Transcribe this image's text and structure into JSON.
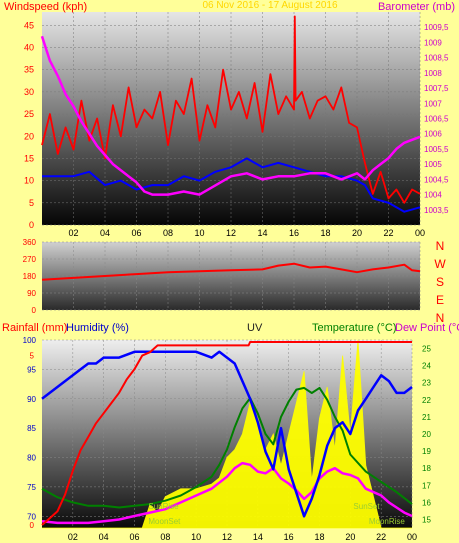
{
  "colors": {
    "background": "#ffff99",
    "wind_speed": "#ff0000",
    "wind_avg": "#0000ff",
    "barometer": "#ff00ff",
    "direction": "#ff0000",
    "rainfall": "#ff0000",
    "humidity": "#0000ff",
    "uv": "#ffff00",
    "temperature": "#008000",
    "dew_point": "#ff00ff",
    "label_red": "#ff0000",
    "label_magenta": "#cc00cc",
    "label_green": "#008000",
    "label_blue": "#0000cc"
  },
  "chart_data": [
    {
      "type": "line",
      "title": "06 Nov 2016 - 17 August 2016",
      "ylabel_left": "Windspeed (kph)",
      "ylabel_right": "Barometer (mb)",
      "ylim_left": [
        0,
        48
      ],
      "ylim_right": [
        1003,
        1010
      ],
      "yticks_left": [
        "0",
        "5",
        "10",
        "15",
        "20",
        "25",
        "30",
        "35",
        "40",
        "45"
      ],
      "yticks_right": [
        "1003,5",
        "1004",
        "1004,5",
        "1005",
        "1005,5",
        "1006",
        "1006,5",
        "1007",
        "1007,5",
        "1008",
        "1008,5",
        "1009",
        "1009,5"
      ],
      "xticks": [
        "02",
        "04",
        "06",
        "08",
        "10",
        "12",
        "14",
        "16",
        "18",
        "20",
        "22",
        "00"
      ],
      "xlim": [
        0,
        24
      ],
      "series": [
        {
          "x": [
            0,
            0.5,
            1,
            1.5,
            2,
            2.5,
            3,
            3.5,
            4,
            4.5,
            5,
            5.5,
            6,
            6.5,
            7,
            7.5,
            8,
            8.5,
            9,
            9.5,
            10,
            10.5,
            11,
            11.5,
            12,
            12.5,
            13,
            13.5,
            14,
            14.5,
            15,
            15.5,
            16,
            16.05,
            16.1,
            16.5,
            17,
            17.5,
            18,
            18.5,
            19,
            19.5,
            20,
            20.5,
            21,
            21.5,
            22,
            22.5,
            23,
            23.5,
            24
          ],
          "values": [
            18,
            25,
            16,
            22,
            17,
            28,
            19,
            24,
            15,
            27,
            20,
            31,
            22,
            26,
            24,
            30,
            18,
            28,
            25,
            33,
            19,
            27,
            22,
            35,
            26,
            30,
            24,
            32,
            21,
            34,
            25,
            29,
            26,
            47,
            28,
            30,
            24,
            28,
            29,
            26,
            31,
            23,
            22,
            14,
            7,
            12,
            6,
            8,
            5,
            8,
            7
          ]
        },
        {
          "x": [
            0,
            1,
            2,
            3,
            4,
            5,
            6,
            7,
            8,
            9,
            10,
            11,
            12,
            13,
            14,
            15,
            16,
            17,
            18,
            19,
            20,
            20.5,
            21,
            22,
            23,
            24
          ],
          "values": [
            11,
            11,
            11,
            12,
            9,
            10,
            8,
            9,
            9,
            11,
            10,
            12,
            13,
            15,
            13,
            14,
            13,
            12,
            11,
            11,
            10,
            9,
            6,
            5,
            3,
            4
          ]
        },
        {
          "x": [
            0,
            0.5,
            1,
            1.5,
            2,
            2.5,
            3,
            3.5,
            4,
            4.5,
            5,
            5.5,
            6,
            6.5,
            7,
            8,
            9,
            10,
            11,
            12,
            13,
            14,
            15,
            16,
            17,
            18,
            19,
            20,
            20.5,
            21,
            21.5,
            22,
            22.5,
            23,
            23.5,
            24
          ],
          "values": [
            1009.2,
            1008.4,
            1007.9,
            1007.3,
            1006.9,
            1006.4,
            1006.0,
            1005.6,
            1005.3,
            1005.0,
            1004.8,
            1004.6,
            1004.4,
            1004.1,
            1004.0,
            1004.0,
            1004.1,
            1004.0,
            1004.3,
            1004.6,
            1004.7,
            1004.5,
            1004.6,
            1004.6,
            1004.7,
            1004.7,
            1004.5,
            1004.7,
            1004.5,
            1004.8,
            1005.0,
            1005.2,
            1005.5,
            1005.7,
            1005.8,
            1005.9
          ]
        }
      ]
    },
    {
      "type": "line",
      "ylim": [
        0,
        360
      ],
      "yticks": [
        "0",
        "90",
        "180",
        "270",
        "360"
      ],
      "compass_labels": [
        "N",
        "W",
        "S",
        "E",
        "N"
      ],
      "xlim": [
        0,
        24
      ],
      "series": [
        {
          "x": [
            0,
            2,
            4,
            6,
            8,
            10,
            12,
            14,
            15,
            16,
            17,
            18,
            19,
            20,
            21,
            22,
            23,
            23.5,
            24
          ],
          "values": [
            160,
            170,
            180,
            190,
            200,
            205,
            210,
            215,
            235,
            245,
            225,
            230,
            215,
            200,
            215,
            225,
            240,
            210,
            205
          ]
        }
      ]
    },
    {
      "type": "line",
      "ylabel_rain": "Rainfall (mm)",
      "ylabel_humidity": "Humidity (%)",
      "label_uv": "UV",
      "ylabel_temperature": "Temperature (°C)",
      "ylabel_dewpoint": "Dew Point (°C",
      "yticks_rain": [
        "0",
        "5"
      ],
      "yticks_humidity": [
        "70",
        "75",
        "80",
        "85",
        "90",
        "95",
        "100"
      ],
      "yticks_temperature": [
        "15",
        "16",
        "17",
        "18",
        "19",
        "20",
        "21",
        "22",
        "23",
        "24",
        "25"
      ],
      "ylim_rain": [
        0,
        5.4
      ],
      "ylim_humidity": [
        68,
        100
      ],
      "ylim_temperature": [
        14.5,
        25.5
      ],
      "xticks": [
        "02",
        "04",
        "06",
        "08",
        "10",
        "12",
        "14",
        "16",
        "18",
        "20",
        "22",
        "00"
      ],
      "xlim": [
        0,
        24
      ],
      "annotations": [
        "SunRise",
        "SunSet",
        "MoonSet",
        "MoonRise"
      ],
      "series": [
        {
          "x": [
            0,
            0.5,
            1,
            1.5,
            2,
            2.5,
            3,
            3.5,
            4,
            4.5,
            5,
            5.5,
            6,
            6.5,
            7,
            7.5,
            8,
            13.4,
            13.5,
            24
          ],
          "values": [
            0,
            0.2,
            0.4,
            0.9,
            1.6,
            2.2,
            2.6,
            3.0,
            3.3,
            3.6,
            3.9,
            4.3,
            4.6,
            5.0,
            5.1,
            5.3,
            5.3,
            5.3,
            5.4,
            5.4
          ]
        },
        {
          "x": [
            0,
            0.5,
            1,
            1.5,
            2,
            2.5,
            3,
            3.5,
            4,
            5,
            6,
            8,
            10,
            11,
            11.5,
            12,
            12.5,
            13,
            13.5,
            14,
            14.5,
            15,
            15.5,
            16,
            16.5,
            17,
            17.5,
            18,
            18.5,
            19,
            19.5,
            20,
            20.5,
            21,
            21.5,
            22,
            22.5,
            23,
            23.5,
            24
          ],
          "values": [
            90,
            91,
            92,
            93,
            94,
            95,
            96,
            96,
            97,
            97,
            98,
            98,
            98,
            97,
            98,
            97,
            96,
            93,
            90,
            86,
            81,
            78,
            85,
            78,
            74,
            70,
            73,
            77,
            82,
            85,
            86,
            84,
            88,
            90,
            92,
            94,
            93,
            91,
            91,
            92
          ]
        },
        {
          "x": [
            0,
            6.5,
            7,
            7.5,
            8,
            9,
            10,
            11,
            11.5,
            12,
            12.5,
            13,
            13.5,
            14,
            14.5,
            15,
            15.5,
            16,
            16.5,
            17,
            17.5,
            18,
            18.5,
            19,
            19.5,
            20,
            20.5,
            21,
            21.5,
            22,
            24
          ],
          "values": [
            0,
            0,
            1.5,
            1,
            2,
            2.5,
            2.5,
            2.8,
            3.2,
            4.5,
            5,
            6,
            8,
            7,
            5,
            6,
            4,
            6,
            8,
            10,
            3,
            7,
            9,
            5,
            11,
            6,
            12,
            4,
            2,
            0,
            0
          ]
        },
        {
          "x": [
            0,
            1,
            2,
            3,
            4,
            5,
            6,
            7,
            8,
            9,
            10,
            11,
            11.5,
            12,
            12.5,
            13,
            13.5,
            14,
            14.5,
            15,
            15.5,
            16,
            16.5,
            17,
            17.5,
            18,
            18.5,
            19,
            19.5,
            20,
            21,
            22,
            23,
            24
          ],
          "values": [
            16.8,
            16.3,
            16.0,
            15.8,
            15.8,
            15.7,
            15.8,
            15.9,
            16.1,
            16.4,
            16.9,
            17.5,
            18.2,
            19.1,
            20.4,
            21.5,
            22.1,
            21.2,
            20.0,
            19.4,
            21.0,
            21.9,
            22.6,
            22.7,
            22.4,
            22.7,
            22.0,
            21.0,
            20.2,
            18.8,
            17.8,
            17.2,
            16.6,
            15.9
          ]
        },
        {
          "x": [
            0,
            1,
            2,
            3,
            4,
            5,
            6,
            7,
            8,
            9,
            10,
            11,
            12,
            12.5,
            13,
            13.5,
            14,
            14.5,
            15,
            15.5,
            16,
            16.5,
            17,
            17.5,
            18,
            18.5,
            19,
            19.5,
            20,
            20.5,
            21,
            22,
            22.5,
            23,
            23.5,
            24
          ],
          "values": [
            14.9,
            14.8,
            14.8,
            14.8,
            14.9,
            15.0,
            15.2,
            15.4,
            15.6,
            16.0,
            16.4,
            16.8,
            17.5,
            18.0,
            18.3,
            18.2,
            17.8,
            17.7,
            18.0,
            17.4,
            17.1,
            16.7,
            16.2,
            16.6,
            17.4,
            17.8,
            18.0,
            17.7,
            17.6,
            17.4,
            16.8,
            16.4,
            16.0,
            15.7,
            15.4,
            15.2
          ]
        }
      ]
    }
  ],
  "labels": {
    "series_names": [
      "Windspeed (kph)",
      "Barometer (mb)",
      "Rainfall (mm)",
      "Humidity (%)",
      "UV",
      "Temperature (°C)",
      "Dew Point (°C"
    ]
  }
}
